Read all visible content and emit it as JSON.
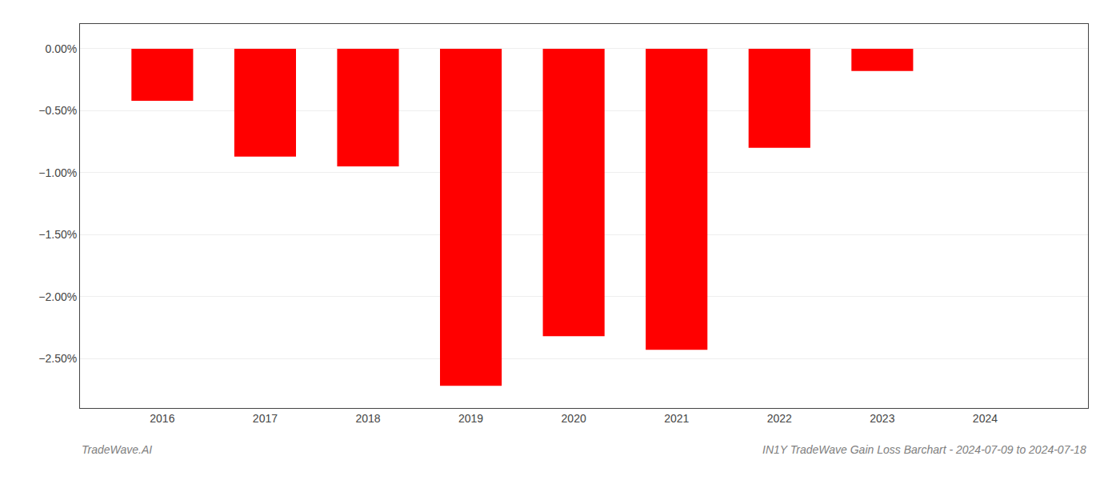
{
  "chart_data": {
    "type": "bar",
    "x": [
      2016,
      2017,
      2018,
      2019,
      2020,
      2021,
      2022,
      2023
    ],
    "values": [
      -0.42,
      -0.87,
      -0.95,
      -2.72,
      -2.32,
      -2.43,
      -0.8,
      -0.18
    ],
    "color": "#ff0000",
    "xlim": [
      2015.2,
      2025.0
    ],
    "xticks": [
      2016,
      2017,
      2018,
      2019,
      2020,
      2021,
      2022,
      2023,
      2024
    ],
    "ylim": [
      -2.9,
      0.2
    ],
    "yticks": [
      {
        "value": 0.0,
        "label": "0.00%"
      },
      {
        "value": -0.5,
        "label": "−0.50%"
      },
      {
        "value": -1.0,
        "label": "−1.00%"
      },
      {
        "value": -1.5,
        "label": "−1.50%"
      },
      {
        "value": -2.0,
        "label": "−2.00%"
      },
      {
        "value": -2.5,
        "label": "−2.50%"
      }
    ],
    "grid": "y",
    "annotations": [
      "TradeWave.AI",
      "IN1Y TradeWave Gain Loss Barchart - 2024-07-09 to 2024-07-18"
    ]
  }
}
